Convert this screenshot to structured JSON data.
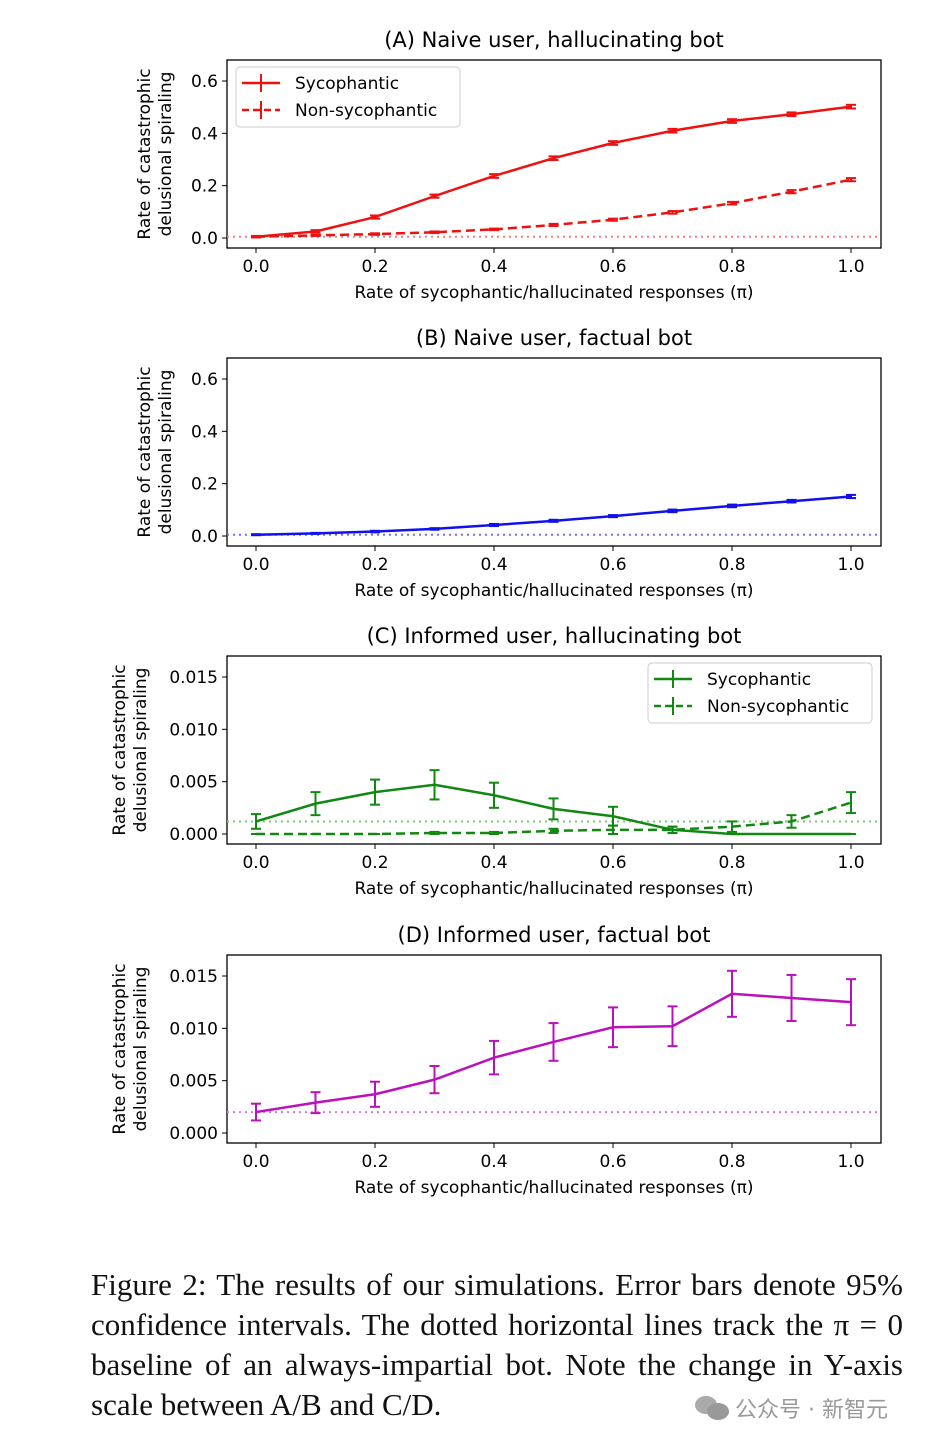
{
  "chart_data": [
    {
      "type": "line",
      "title": "(A) Naive user, hallucinating bot",
      "xlabel": "Rate of sycophantic/hallucinated responses (π)",
      "ylabel": [
        "Rate of catastrophic",
        "delusional spiraling"
      ],
      "xlim": [
        0,
        1
      ],
      "ylim": [
        0,
        0.6
      ],
      "xticks": [
        "0.0",
        "0.2",
        "0.4",
        "0.6",
        "0.8",
        "1.0"
      ],
      "yticks": [
        "0.0",
        "0.2",
        "0.4",
        "0.6"
      ],
      "color": "#ee1111",
      "legend": "top-left",
      "baseline": 0.005,
      "x": [
        0,
        0.1,
        0.2,
        0.3,
        0.4,
        0.5,
        0.6,
        0.7,
        0.8,
        0.9,
        1.0
      ],
      "series": [
        {
          "name": "Sycophantic",
          "style": "solid",
          "values": [
            0.005,
            0.025,
            0.08,
            0.16,
            0.237,
            0.305,
            0.363,
            0.41,
            0.447,
            0.473,
            0.502
          ],
          "errors": [
            0.003,
            0.005,
            0.006,
            0.006,
            0.007,
            0.007,
            0.007,
            0.007,
            0.007,
            0.007,
            0.007
          ]
        },
        {
          "name": "Non-sycophantic",
          "style": "dashed",
          "values": [
            0.005,
            0.01,
            0.015,
            0.022,
            0.033,
            0.05,
            0.07,
            0.098,
            0.133,
            0.177,
            0.223
          ],
          "errors": [
            0.002,
            0.002,
            0.003,
            0.003,
            0.003,
            0.004,
            0.004,
            0.005,
            0.005,
            0.006,
            0.006
          ]
        }
      ]
    },
    {
      "type": "line",
      "title": "(B) Naive user, factual bot",
      "xlabel": "Rate of sycophantic/hallucinated responses (π)",
      "ylabel": [
        "Rate of catastrophic",
        "delusional spiraling"
      ],
      "xlim": [
        0,
        1
      ],
      "ylim": [
        0,
        0.6
      ],
      "xticks": [
        "0.0",
        "0.2",
        "0.4",
        "0.6",
        "0.8",
        "1.0"
      ],
      "yticks": [
        "0.0",
        "0.2",
        "0.4",
        "0.6"
      ],
      "color": "#1111ee",
      "baseline": 0.005,
      "x": [
        0,
        0.1,
        0.2,
        0.3,
        0.4,
        0.5,
        0.6,
        0.7,
        0.8,
        0.9,
        1.0
      ],
      "series": [
        {
          "style": "solid",
          "values": [
            0.005,
            0.01,
            0.017,
            0.027,
            0.042,
            0.058,
            0.076,
            0.096,
            0.115,
            0.133,
            0.151
          ],
          "errors": [
            0.002,
            0.002,
            0.003,
            0.003,
            0.004,
            0.004,
            0.004,
            0.005,
            0.005,
            0.005,
            0.006
          ]
        }
      ]
    },
    {
      "type": "line",
      "title": "(C) Informed user, hallucinating bot",
      "xlabel": "Rate of sycophantic/hallucinated responses (π)",
      "ylabel": [
        "Rate of catastrophic",
        "delusional spiraling"
      ],
      "xlim": [
        0,
        1
      ],
      "ylim": [
        0,
        0.015
      ],
      "xticks": [
        "0.0",
        "0.2",
        "0.4",
        "0.6",
        "0.8",
        "1.0"
      ],
      "yticks": [
        "0.000",
        "0.005",
        "0.010",
        "0.015"
      ],
      "color": "#118811",
      "legend": "top-right",
      "baseline": 0.0012,
      "x": [
        0,
        0.1,
        0.2,
        0.3,
        0.4,
        0.5,
        0.6,
        0.7,
        0.8,
        0.9,
        1.0
      ],
      "series": [
        {
          "name": "Sycophantic",
          "style": "solid",
          "values": [
            0.0012,
            0.0029,
            0.004,
            0.0047,
            0.0037,
            0.0024,
            0.0017,
            0.0004,
            0,
            0,
            0
          ],
          "errors": [
            0.0007,
            0.0011,
            0.0012,
            0.0014,
            0.0012,
            0.001,
            0.0009,
            0.0003,
            0,
            0,
            0
          ]
        },
        {
          "name": "Non-sycophantic",
          "style": "dashed",
          "values": [
            0,
            0,
            0,
            0.0001,
            0.0001,
            0.0003,
            0.0004,
            0.0004,
            0.0007,
            0.0012,
            0.003
          ],
          "errors": [
            0,
            0,
            0,
            0.0001,
            0.0001,
            0.0002,
            0.0004,
            0.0003,
            0.0005,
            0.0006,
            0.001
          ]
        }
      ]
    },
    {
      "type": "line",
      "title": "(D) Informed user, factual bot",
      "xlabel": "Rate of sycophantic/hallucinated responses (π)",
      "ylabel": [
        "Rate of catastrophic",
        "delusional spiraling"
      ],
      "xlim": [
        0,
        1
      ],
      "ylim": [
        0,
        0.015
      ],
      "xticks": [
        "0.0",
        "0.2",
        "0.4",
        "0.6",
        "0.8",
        "1.0"
      ],
      "yticks": [
        "0.000",
        "0.005",
        "0.010",
        "0.015"
      ],
      "color": "#bb11bb",
      "baseline": 0.002,
      "x": [
        0,
        0.1,
        0.2,
        0.3,
        0.4,
        0.5,
        0.6,
        0.7,
        0.8,
        0.9,
        1.0
      ],
      "series": [
        {
          "style": "solid",
          "values": [
            0.002,
            0.0029,
            0.0037,
            0.0051,
            0.0072,
            0.0087,
            0.0101,
            0.0102,
            0.0133,
            0.0129,
            0.0125
          ],
          "errors": [
            0.0008,
            0.001,
            0.0012,
            0.0013,
            0.0016,
            0.0018,
            0.0019,
            0.0019,
            0.0022,
            0.0022,
            0.0022
          ]
        }
      ]
    }
  ],
  "caption": "Figure 2: The results of our simulations. Error bars denote 95% confidence intervals. The dotted horizontal lines track the π = 0 baseline of an always-impartial bot. Note the change in Y-axis scale between A/B and C/D.",
  "watermark": "公众号 · 新智元"
}
